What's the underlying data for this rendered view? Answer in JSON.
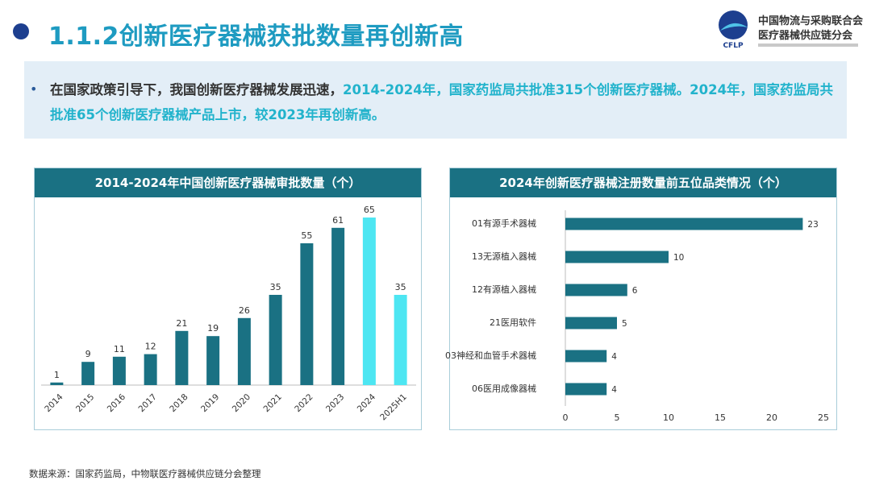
{
  "page": {
    "title": "1.1.2创新医疗器械获批数量再创新高",
    "logo": {
      "line1": "中国物流与采购联合会",
      "line2": "医疗器械供应链分会",
      "abbr": "CFLP"
    },
    "summary": {
      "p1": "在国家政策引导下，我国创新医疗器械发展迅速，",
      "h1": "2014-2024年，国家药监局共批准315个创新医疗器械。2024年，国家药监局共批准65个创新医疗器械产品上市，较2023年再创新高。"
    },
    "source": "数据来源：国家药监局，中物联医疗器械供应链分会整理"
  },
  "colors": {
    "bar_dark": "#1a7183",
    "bar_highlight": "#4de6f2",
    "header": "#1a7183",
    "title": "#1e9bc1"
  },
  "chart_data": [
    {
      "type": "bar",
      "title": "2014-2024年中国创新医疗器械审批数量（个）",
      "categories": [
        "2014",
        "2015",
        "2016",
        "2017",
        "2018",
        "2019",
        "2020",
        "2021",
        "2022",
        "2023",
        "2024",
        "2025H1"
      ],
      "values": [
        1,
        9,
        11,
        12,
        21,
        19,
        26,
        35,
        55,
        61,
        65,
        35
      ],
      "highlight": [
        "2024",
        "2025H1"
      ],
      "ylim": [
        0,
        70
      ],
      "xlabel": "",
      "ylabel": "",
      "grid": false
    },
    {
      "type": "bar",
      "orientation": "horizontal",
      "title": "2024年创新医疗器械注册数量前五位品类情况（个）",
      "categories": [
        "01有源手术器械",
        "13无源植入器械",
        "12有源植入器械",
        "21医用软件",
        "03神经和血管手术器械",
        "06医用成像器械"
      ],
      "values": [
        23,
        10,
        6,
        5,
        4,
        4
      ],
      "xlim": [
        0,
        25
      ],
      "xticks": [
        0,
        5,
        10,
        15,
        20,
        25
      ],
      "grid": false
    }
  ]
}
